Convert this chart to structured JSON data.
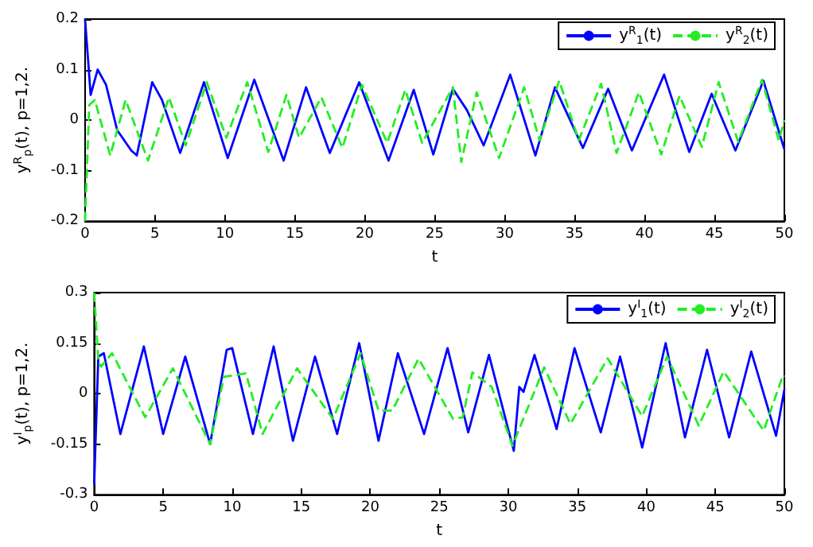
{
  "chart_data": [
    {
      "type": "line",
      "xlabel": "t",
      "ylabel": "y$^{R}$$_{p}$(t), p=1,2.",
      "xlim": [
        0,
        50
      ],
      "ylim": [
        -0.2,
        0.2
      ],
      "xticks": [
        0,
        5,
        10,
        15,
        20,
        25,
        30,
        35,
        40,
        45,
        50
      ],
      "yticks": [
        -0.2,
        -0.1,
        0,
        0.1,
        0.2
      ],
      "grid": false,
      "legend": "top right",
      "marker": "none",
      "series": [
        {
          "name": "y$^{R}$$_{1}$(t)",
          "color": "#0000ff",
          "line_style": "solid",
          "x": [
            0,
            0.4,
            0.9,
            1.5,
            2.3,
            3.3,
            3.7,
            4.8,
            5.5,
            6.8,
            8.5,
            10.2,
            12.1,
            14.2,
            15.8,
            17.5,
            19.6,
            21.7,
            23.5,
            24.9,
            26.3,
            27.3,
            28.5,
            30.4,
            32.2,
            33.6,
            35.6,
            37.4,
            39.1,
            41.4,
            43.2,
            44.8,
            46.5,
            48.5,
            50
          ],
          "values": [
            0.2,
            0.05,
            0.1,
            0.07,
            -0.02,
            -0.06,
            -0.07,
            0.075,
            0.04,
            -0.065,
            0.075,
            -0.075,
            0.08,
            -0.08,
            0.065,
            -0.065,
            0.075,
            -0.08,
            0.06,
            -0.068,
            0.062,
            0.02,
            -0.05,
            0.09,
            -0.07,
            0.065,
            -0.055,
            0.062,
            -0.06,
            0.09,
            -0.063,
            0.052,
            -0.06,
            0.078,
            -0.058
          ]
        },
        {
          "name": "y$^{R}$$_{2}$(t)",
          "color": "#22ee22",
          "line_style": "dashed",
          "x": [
            0,
            0.3,
            0.7,
            1.8,
            2.9,
            4.5,
            6,
            7.2,
            8.7,
            10.1,
            11.6,
            13.1,
            14.4,
            15.3,
            16.9,
            18.4,
            19.8,
            21.6,
            22.9,
            24.1,
            26.3,
            26.9,
            28,
            29.6,
            31.4,
            32.5,
            33.9,
            35.3,
            36.9,
            38,
            39.6,
            41.2,
            42.5,
            44.1,
            45.3,
            46.7,
            48.4,
            49.6,
            50
          ],
          "values": [
            -0.2,
            0.03,
            0.04,
            -0.07,
            0.04,
            -0.08,
            0.045,
            -0.05,
            0.075,
            -0.035,
            0.075,
            -0.063,
            0.05,
            -0.035,
            0.045,
            -0.055,
            0.07,
            -0.045,
            0.06,
            -0.045,
            0.065,
            -0.083,
            0.055,
            -0.075,
            0.065,
            -0.04,
            0.078,
            -0.04,
            0.072,
            -0.065,
            0.055,
            -0.068,
            0.048,
            -0.053,
            0.075,
            -0.043,
            0.08,
            -0.04,
            0
          ]
        }
      ]
    },
    {
      "type": "line",
      "xlabel": "t",
      "ylabel": "y$^{I}$$_{p}$(t), p=1,2.",
      "xlim": [
        0,
        50
      ],
      "ylim": [
        -0.3,
        0.3
      ],
      "xticks": [
        0,
        5,
        10,
        15,
        20,
        25,
        30,
        35,
        40,
        45,
        50
      ],
      "yticks": [
        -0.3,
        -0.15,
        0,
        0.15,
        0.3
      ],
      "grid": false,
      "legend": "top right",
      "marker": "none",
      "series": [
        {
          "name": "y$^{I}$$_{1}$(t)",
          "color": "#0000ff",
          "line_style": "solid",
          "x": [
            0,
            0.3,
            0.7,
            1.9,
            3.6,
            5,
            6.6,
            8.4,
            9.6,
            10,
            11.5,
            13,
            14.4,
            16,
            17.6,
            19.2,
            20.6,
            22,
            23.9,
            25.6,
            27.1,
            28.6,
            30.4,
            30.8,
            31.1,
            31.9,
            33.5,
            34.8,
            36.7,
            38.1,
            39.7,
            41.4,
            42.8,
            44.4,
            46,
            47.6,
            49.4,
            50
          ],
          "values": [
            -0.27,
            0.11,
            0.12,
            -0.12,
            0.14,
            -0.12,
            0.11,
            -0.15,
            0.13,
            0.135,
            -0.12,
            0.14,
            -0.14,
            0.11,
            -0.12,
            0.15,
            -0.14,
            0.12,
            -0.12,
            0.135,
            -0.115,
            0.115,
            -0.17,
            0.02,
            0.005,
            0.115,
            -0.105,
            0.135,
            -0.115,
            0.11,
            -0.16,
            0.15,
            -0.13,
            0.13,
            -0.13,
            0.125,
            -0.125,
            0.012
          ]
        },
        {
          "name": "y$^{I}$$_{2}$(t)",
          "color": "#22ee22",
          "line_style": "dashed",
          "x": [
            0,
            0.3,
            0.5,
            1.3,
            3.7,
            5.7,
            8.4,
            9.4,
            11,
            12.2,
            14.7,
            17.3,
            19.3,
            20.6,
            21.6,
            23.5,
            26,
            26.7,
            27.4,
            28.8,
            30.3,
            32.6,
            34.5,
            37.2,
            39.7,
            41.5,
            43.8,
            45.6,
            48.5,
            49.9,
            50
          ],
          "values": [
            0.3,
            0.1,
            0.08,
            0.12,
            -0.07,
            0.075,
            -0.15,
            0.05,
            0.06,
            -0.12,
            0.075,
            -0.075,
            0.12,
            -0.05,
            -0.05,
            0.104,
            -0.075,
            -0.07,
            0.063,
            0.02,
            -0.155,
            0.078,
            -0.09,
            0.105,
            -0.067,
            0.11,
            -0.095,
            0.066,
            -0.11,
            0.055,
            0.05
          ]
        }
      ]
    }
  ]
}
